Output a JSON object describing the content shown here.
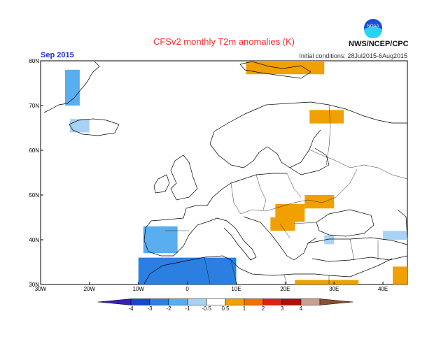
{
  "header": {
    "title": "CFSv2 monthly T2m anomalies (K)",
    "month": "Sep 2015",
    "initial_conditions": "Initial conditions: 28Jul2015-6Aug2015",
    "org": "NWS/NCEP/CPC",
    "logo_text": "NOAA"
  },
  "map": {
    "projection": "lat-lon",
    "lon_range": [
      -30,
      45
    ],
    "lat_range": [
      30,
      80
    ],
    "lon_ticks": [
      "30W",
      "20W",
      "10W",
      "0",
      "10E",
      "20E",
      "30E",
      "40E"
    ],
    "lat_ticks": [
      "30N",
      "40N",
      "50N",
      "60N",
      "70N",
      "80N"
    ],
    "ocean_color": "#ffffff",
    "coast_color": "#000000"
  },
  "colorbar": {
    "labels": [
      "-4",
      "-3",
      "-2",
      "-1",
      "-0.5",
      "0.5",
      "1",
      "2",
      "3",
      "4"
    ],
    "colors": [
      "#3a1fb5",
      "#1646cc",
      "#2a7fe0",
      "#59aef0",
      "#a9d3f6",
      "#ffffff",
      "#f0a000",
      "#f07000",
      "#e02010",
      "#b01000",
      "#c8a090",
      "#8a5030"
    ]
  },
  "anomalies": {
    "cold": [
      {
        "name": "greenland-east",
        "lon": [
          -25,
          -22
        ],
        "lat": [
          70,
          78
        ],
        "level": "-1"
      },
      {
        "name": "iceland",
        "lon": [
          -24,
          -20
        ],
        "lat": [
          64,
          67
        ],
        "level": "-0.5"
      },
      {
        "name": "portugal-spain",
        "lon": [
          -9,
          -2
        ],
        "lat": [
          37,
          43
        ],
        "level": "-1"
      },
      {
        "name": "north-africa",
        "lon": [
          -10,
          10
        ],
        "lat": [
          30,
          36
        ],
        "level": "-2"
      },
      {
        "name": "black-sea-small",
        "lon": [
          28,
          30
        ],
        "lat": [
          39,
          41
        ],
        "level": "-0.5"
      },
      {
        "name": "caspian-w",
        "lon": [
          40,
          45
        ],
        "lat": [
          40,
          42
        ],
        "level": "-0.5"
      }
    ],
    "warm": [
      {
        "name": "svalbard",
        "lon": [
          12,
          28
        ],
        "lat": [
          77,
          80
        ],
        "level": "1"
      },
      {
        "name": "finland",
        "lon": [
          25,
          32
        ],
        "lat": [
          66,
          69
        ],
        "level": "1"
      },
      {
        "name": "ukraine",
        "lon": [
          24,
          30
        ],
        "lat": [
          47,
          50
        ],
        "level": "1"
      },
      {
        "name": "pannonian",
        "lon": [
          18,
          24
        ],
        "lat": [
          44,
          48
        ],
        "level": "1"
      },
      {
        "name": "balkans",
        "lon": [
          17,
          22
        ],
        "lat": [
          42,
          45
        ],
        "level": "1"
      },
      {
        "name": "egypt-sinai",
        "lon": [
          22,
          35
        ],
        "lat": [
          30,
          31
        ],
        "level": "1"
      },
      {
        "name": "middle-east",
        "lon": [
          42,
          45
        ],
        "lat": [
          30,
          34
        ],
        "level": "1"
      }
    ]
  }
}
